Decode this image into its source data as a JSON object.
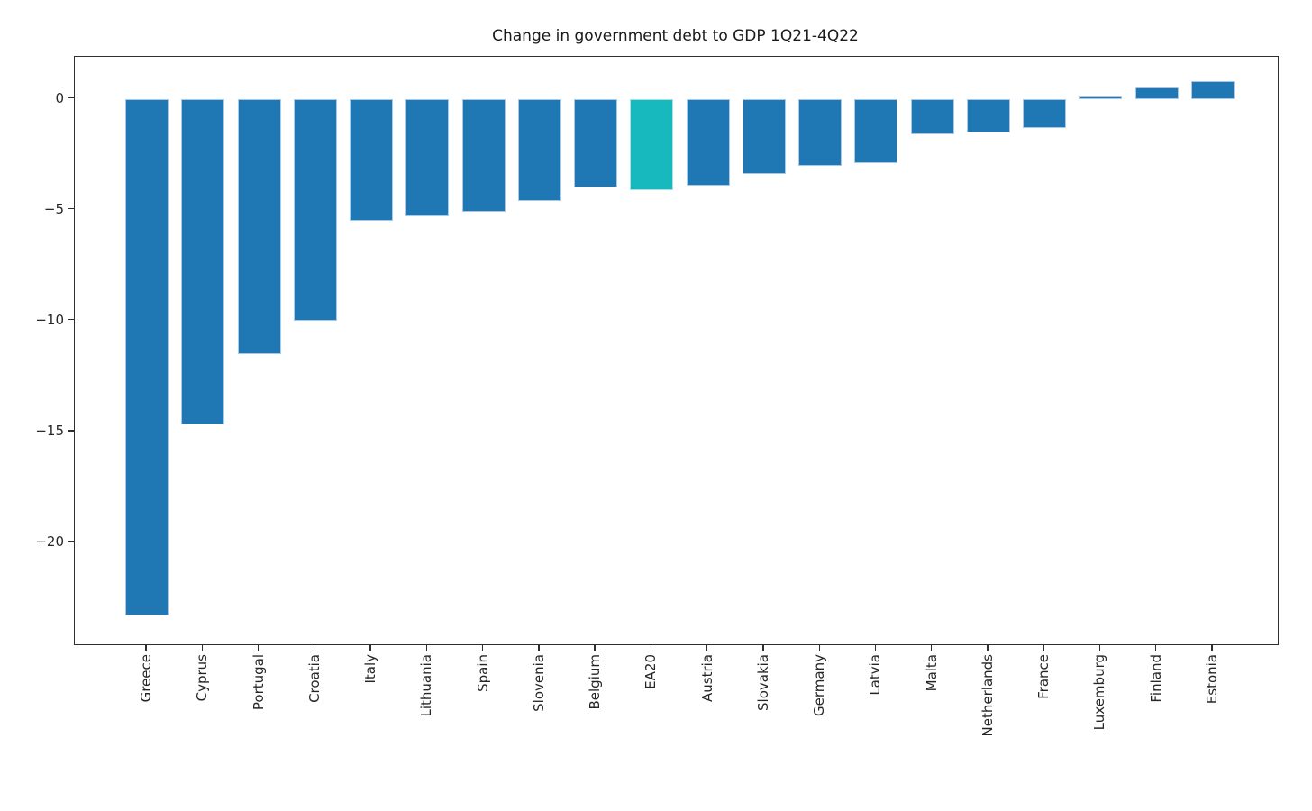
{
  "chart_data": {
    "type": "bar",
    "title": "Change in government debt to GDP 1Q21-4Q22",
    "categories": [
      "Greece",
      "Cyprus",
      "Portugal",
      "Croatia",
      "Italy",
      "Lithuania",
      "Spain",
      "Slovenia",
      "Belgium",
      "EA20",
      "Austria",
      "Slovakia",
      "Germany",
      "Latvia",
      "Malta",
      "Netherlands",
      "France",
      "Luxemburg",
      "Finland",
      "Estonia"
    ],
    "values": [
      -23.3,
      -14.7,
      -11.5,
      -10.0,
      -5.5,
      -5.3,
      -5.1,
      -4.6,
      -4.0,
      -4.1,
      -3.9,
      -3.4,
      -3.0,
      -2.9,
      -1.6,
      -1.5,
      -1.3,
      0.1,
      0.5,
      0.8
    ],
    "highlight_category": "EA20",
    "xlabel": "",
    "ylabel": "",
    "ylim": [
      -24.6,
      1.9
    ],
    "yticks": [
      0,
      -5,
      -10,
      -15,
      -20
    ],
    "ytick_labels": [
      "0",
      "−5",
      "−10",
      "−15",
      "−20"
    ],
    "grid": false,
    "legend": null,
    "colors": {
      "bar": "#1f77b4",
      "bar_edge": "#aac8e8",
      "highlight": "#17b9be",
      "highlight_edge": "#a2e3e5",
      "spine": "#2e2e2e",
      "text": "#262626"
    }
  }
}
